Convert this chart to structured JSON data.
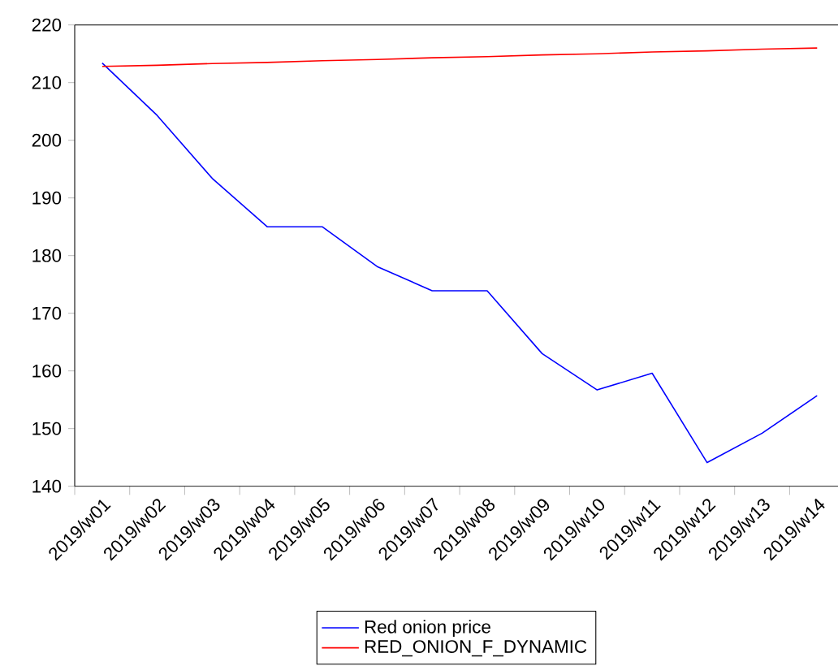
{
  "chart_data": {
    "type": "line",
    "categories": [
      "2019/w01",
      "2019/w02",
      "2019/w03",
      "2019/w04",
      "2019/w05",
      "2019/w06",
      "2019/w07",
      "2019/w08",
      "2019/w09",
      "2019/w10",
      "2019/w11",
      "2019/w12",
      "2019/w13",
      "2019/w14"
    ],
    "series": [
      {
        "name": "Red onion price",
        "color": "#0000ff",
        "values": [
          213.4,
          204.3,
          193.4,
          185.0,
          185.0,
          178.1,
          173.9,
          173.9,
          163.0,
          156.7,
          159.6,
          144.1,
          149.2,
          155.7
        ]
      },
      {
        "name": "RED_ONION_F_DYNAMIC",
        "color": "#ff0000",
        "values": [
          212.8,
          213.0,
          213.3,
          213.5,
          213.8,
          214.0,
          214.3,
          214.5,
          214.8,
          215.0,
          215.3,
          215.5,
          215.8,
          216.0
        ]
      }
    ],
    "ylim": [
      140,
      220
    ],
    "yticks": [
      140,
      150,
      160,
      170,
      180,
      190,
      200,
      210,
      220
    ],
    "grid": false,
    "legend": "bottom",
    "marker": "none",
    "line_style": "solid"
  }
}
